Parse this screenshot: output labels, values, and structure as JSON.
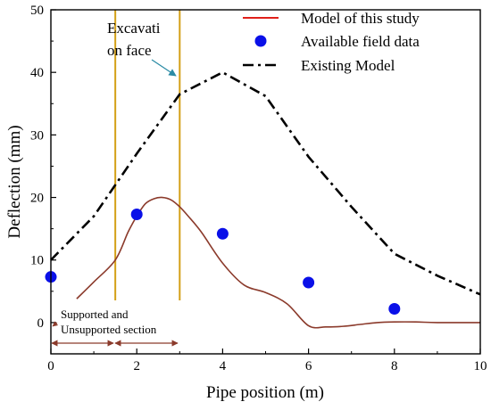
{
  "chart_data": {
    "type": "line",
    "xlabel": "Pipe position (m)",
    "ylabel": "Deflection (mm)",
    "xlim": [
      0,
      10
    ],
    "ylim": [
      -5,
      50
    ],
    "xticks": [
      0,
      2,
      4,
      6,
      8,
      10
    ],
    "yticks": [
      0,
      10,
      20,
      30,
      40,
      50
    ],
    "grid": false,
    "legend_position": "top-right",
    "series": [
      {
        "name": "Model of this study",
        "style": "line",
        "color": "#8b3a2b",
        "legend_color": "#e0201a",
        "x": [
          0.6,
          1.0,
          1.5,
          1.8,
          2.0,
          2.2,
          2.4,
          2.6,
          2.8,
          3.0,
          3.2,
          3.5,
          4.0,
          4.5,
          5.0,
          5.5,
          6.0,
          6.4,
          6.8,
          7.2,
          7.6,
          8.0,
          8.5,
          9.0,
          10.0
        ],
        "y": [
          3.8,
          6.5,
          10.0,
          14.5,
          17.0,
          19.0,
          19.8,
          20.0,
          19.6,
          18.5,
          17.0,
          14.5,
          9.5,
          6.0,
          4.8,
          3.0,
          -0.5,
          -0.7,
          -0.6,
          -0.3,
          0.0,
          0.1,
          0.1,
          0.0,
          0.0
        ]
      },
      {
        "name": "Available field data",
        "style": "scatter",
        "color": "#0a10e8",
        "x": [
          0,
          2,
          4,
          6,
          8
        ],
        "y": [
          7.3,
          17.3,
          14.2,
          6.4,
          2.2
        ]
      },
      {
        "name": "Existing Model",
        "style": "dashdot",
        "color": "#000000",
        "x": [
          0,
          1,
          2,
          3,
          4,
          5,
          6,
          7,
          8,
          9,
          10
        ],
        "y": [
          10.0,
          17.0,
          27.0,
          36.5,
          40.0,
          36.2,
          26.5,
          18.5,
          11.0,
          7.5,
          4.5
        ]
      }
    ],
    "vlines": [
      {
        "x": 1.5,
        "color": "#d4a017"
      },
      {
        "x": 3.0,
        "color": "#d4a017"
      }
    ],
    "annotations": {
      "excavation_face": {
        "text_line1": "Excavati",
        "text_line2": "on face",
        "target": [
          3.0,
          39.5
        ],
        "arrow_color": "#2b8ba5"
      },
      "section": {
        "text_line1": "Supported and",
        "text_line2": "Unsupported section",
        "color": "#8b3a2b",
        "y": -3.3,
        "ranges": [
          [
            0,
            1.5
          ],
          [
            1.5,
            3.0
          ]
        ]
      }
    }
  }
}
